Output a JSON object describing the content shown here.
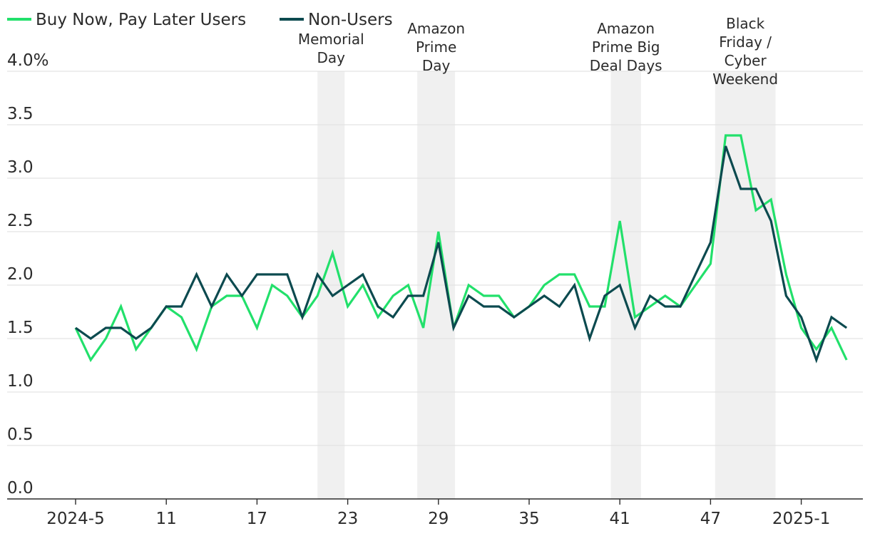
{
  "chart_data": {
    "type": "line",
    "title": "",
    "xlabel": "",
    "ylabel": "",
    "ylim": [
      0,
      4
    ],
    "y_ticks": [
      {
        "value": 0,
        "label": "0.0"
      },
      {
        "value": 0.5,
        "label": "0.5"
      },
      {
        "value": 1,
        "label": "1.0"
      },
      {
        "value": 1.5,
        "label": "1.5"
      },
      {
        "value": 2,
        "label": "2.0"
      },
      {
        "value": 2.5,
        "label": "2.5"
      },
      {
        "value": 3,
        "label": "3.0"
      },
      {
        "value": 3.5,
        "label": "3.5"
      },
      {
        "value": 4,
        "label": "4.0%"
      }
    ],
    "x_ticks": [
      {
        "index": 0,
        "label": "2024-5"
      },
      {
        "index": 6,
        "label": "11"
      },
      {
        "index": 12,
        "label": "17"
      },
      {
        "index": 18,
        "label": "23"
      },
      {
        "index": 24,
        "label": "29"
      },
      {
        "index": 30,
        "label": "35"
      },
      {
        "index": 36,
        "label": "41"
      },
      {
        "index": 42,
        "label": "47"
      },
      {
        "index": 48,
        "label": "2025-1"
      }
    ],
    "legend": [
      {
        "name": "Buy Now, Pay Later Users",
        "color": "#22e06b"
      },
      {
        "name": "Non-Users",
        "color": "#0c4a4f"
      }
    ],
    "series": [
      {
        "name": "Buy Now, Pay Later Users",
        "color": "#22e06b",
        "values": [
          1.6,
          1.3,
          1.5,
          1.8,
          1.4,
          1.6,
          1.8,
          1.7,
          1.4,
          1.8,
          1.9,
          1.9,
          1.6,
          2.0,
          1.9,
          1.7,
          1.9,
          2.3,
          1.8,
          2.0,
          1.7,
          1.9,
          2.0,
          1.6,
          2.5,
          1.6,
          2.0,
          1.9,
          1.9,
          1.7,
          1.8,
          2.0,
          2.1,
          2.1,
          1.8,
          1.8,
          2.6,
          1.7,
          1.8,
          1.9,
          1.8,
          2.0,
          2.2,
          3.4,
          3.4,
          2.7,
          2.8,
          2.1,
          1.6,
          1.4,
          1.6,
          1.3
        ]
      },
      {
        "name": "Non-Users",
        "color": "#0c4a4f",
        "values": [
          1.6,
          1.5,
          1.6,
          1.6,
          1.5,
          1.6,
          1.8,
          1.8,
          2.1,
          1.8,
          2.1,
          1.9,
          2.1,
          2.1,
          2.1,
          1.7,
          2.1,
          1.9,
          2.0,
          2.1,
          1.8,
          1.7,
          1.9,
          1.9,
          2.4,
          1.6,
          1.9,
          1.8,
          1.8,
          1.7,
          1.8,
          1.9,
          1.8,
          2.0,
          1.5,
          1.9,
          2.0,
          1.6,
          1.9,
          1.8,
          1.8,
          2.1,
          2.4,
          3.3,
          2.9,
          2.9,
          2.6,
          1.9,
          1.7,
          1.3,
          1.7,
          1.6
        ]
      }
    ],
    "shaded_periods": [
      {
        "start": 16,
        "end": 17.8,
        "label_lines": [
          "Memorial",
          "Day"
        ]
      },
      {
        "start": 22.6,
        "end": 25.1,
        "label_lines": [
          "Amazon",
          "Prime",
          "Day"
        ]
      },
      {
        "start": 35.4,
        "end": 37.4,
        "label_lines": [
          "Amazon",
          "Prime Big",
          "Deal Days"
        ]
      },
      {
        "start": 42.3,
        "end": 46.3,
        "label_lines": [
          "Black",
          "Friday /",
          "Cyber",
          "Weekend"
        ]
      }
    ],
    "colors": {
      "grid": "#e3e3e3",
      "shade": "#f0f0f0",
      "axis": "#2b2b2b",
      "text": "#2b2b2b"
    }
  }
}
